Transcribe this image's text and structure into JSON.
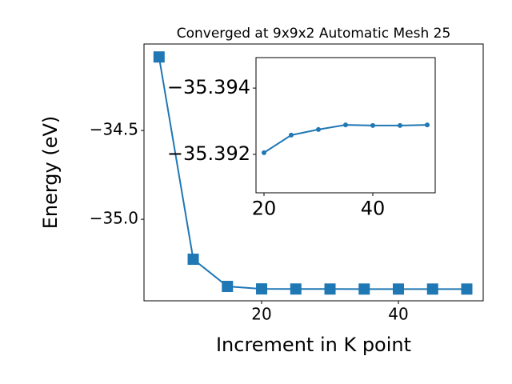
{
  "chart_data": [
    {
      "type": "line",
      "title": "Converged at 9x9x2 Automatic Mesh 25",
      "x_label": "Increment in K point",
      "y_label": "Energy (eV)",
      "x": [
        5,
        10,
        15,
        20,
        25,
        30,
        35,
        40,
        45,
        50
      ],
      "series": [
        {
          "color": "#1f77b4",
          "marker": "square",
          "values": [
            -34.086,
            -35.225,
            -35.378,
            -35.39205,
            -35.39258,
            -35.39275,
            -35.39289,
            -35.39287,
            -35.39287,
            -35.39289
          ]
        }
      ],
      "xlim": [
        2.8,
        52.4
      ],
      "ylim": [
        -35.459,
        -34.013
      ],
      "xticks": [
        20,
        40
      ],
      "yticks": [
        {
          "value": -35.0,
          "label": "−35.0"
        },
        {
          "value": -34.5,
          "label": "−34.5"
        }
      ]
    },
    {
      "type": "line",
      "x": [
        20,
        25,
        30,
        35,
        40,
        45,
        50
      ],
      "series": [
        {
          "color": "#1f77b4",
          "marker": "circle",
          "values": [
            -35.39205,
            -35.39258,
            -35.39275,
            -35.39289,
            -35.39287,
            -35.39287,
            -35.39289
          ]
        }
      ],
      "xlim": [
        18.53,
        51.47
      ],
      "ylim": [
        -35.39084,
        -35.39492
      ],
      "xticks": [
        20,
        40
      ],
      "yticks": [
        {
          "value": -35.392,
          "label": "−35.392"
        },
        {
          "value": -35.394,
          "label": "−35.394"
        }
      ]
    }
  ]
}
